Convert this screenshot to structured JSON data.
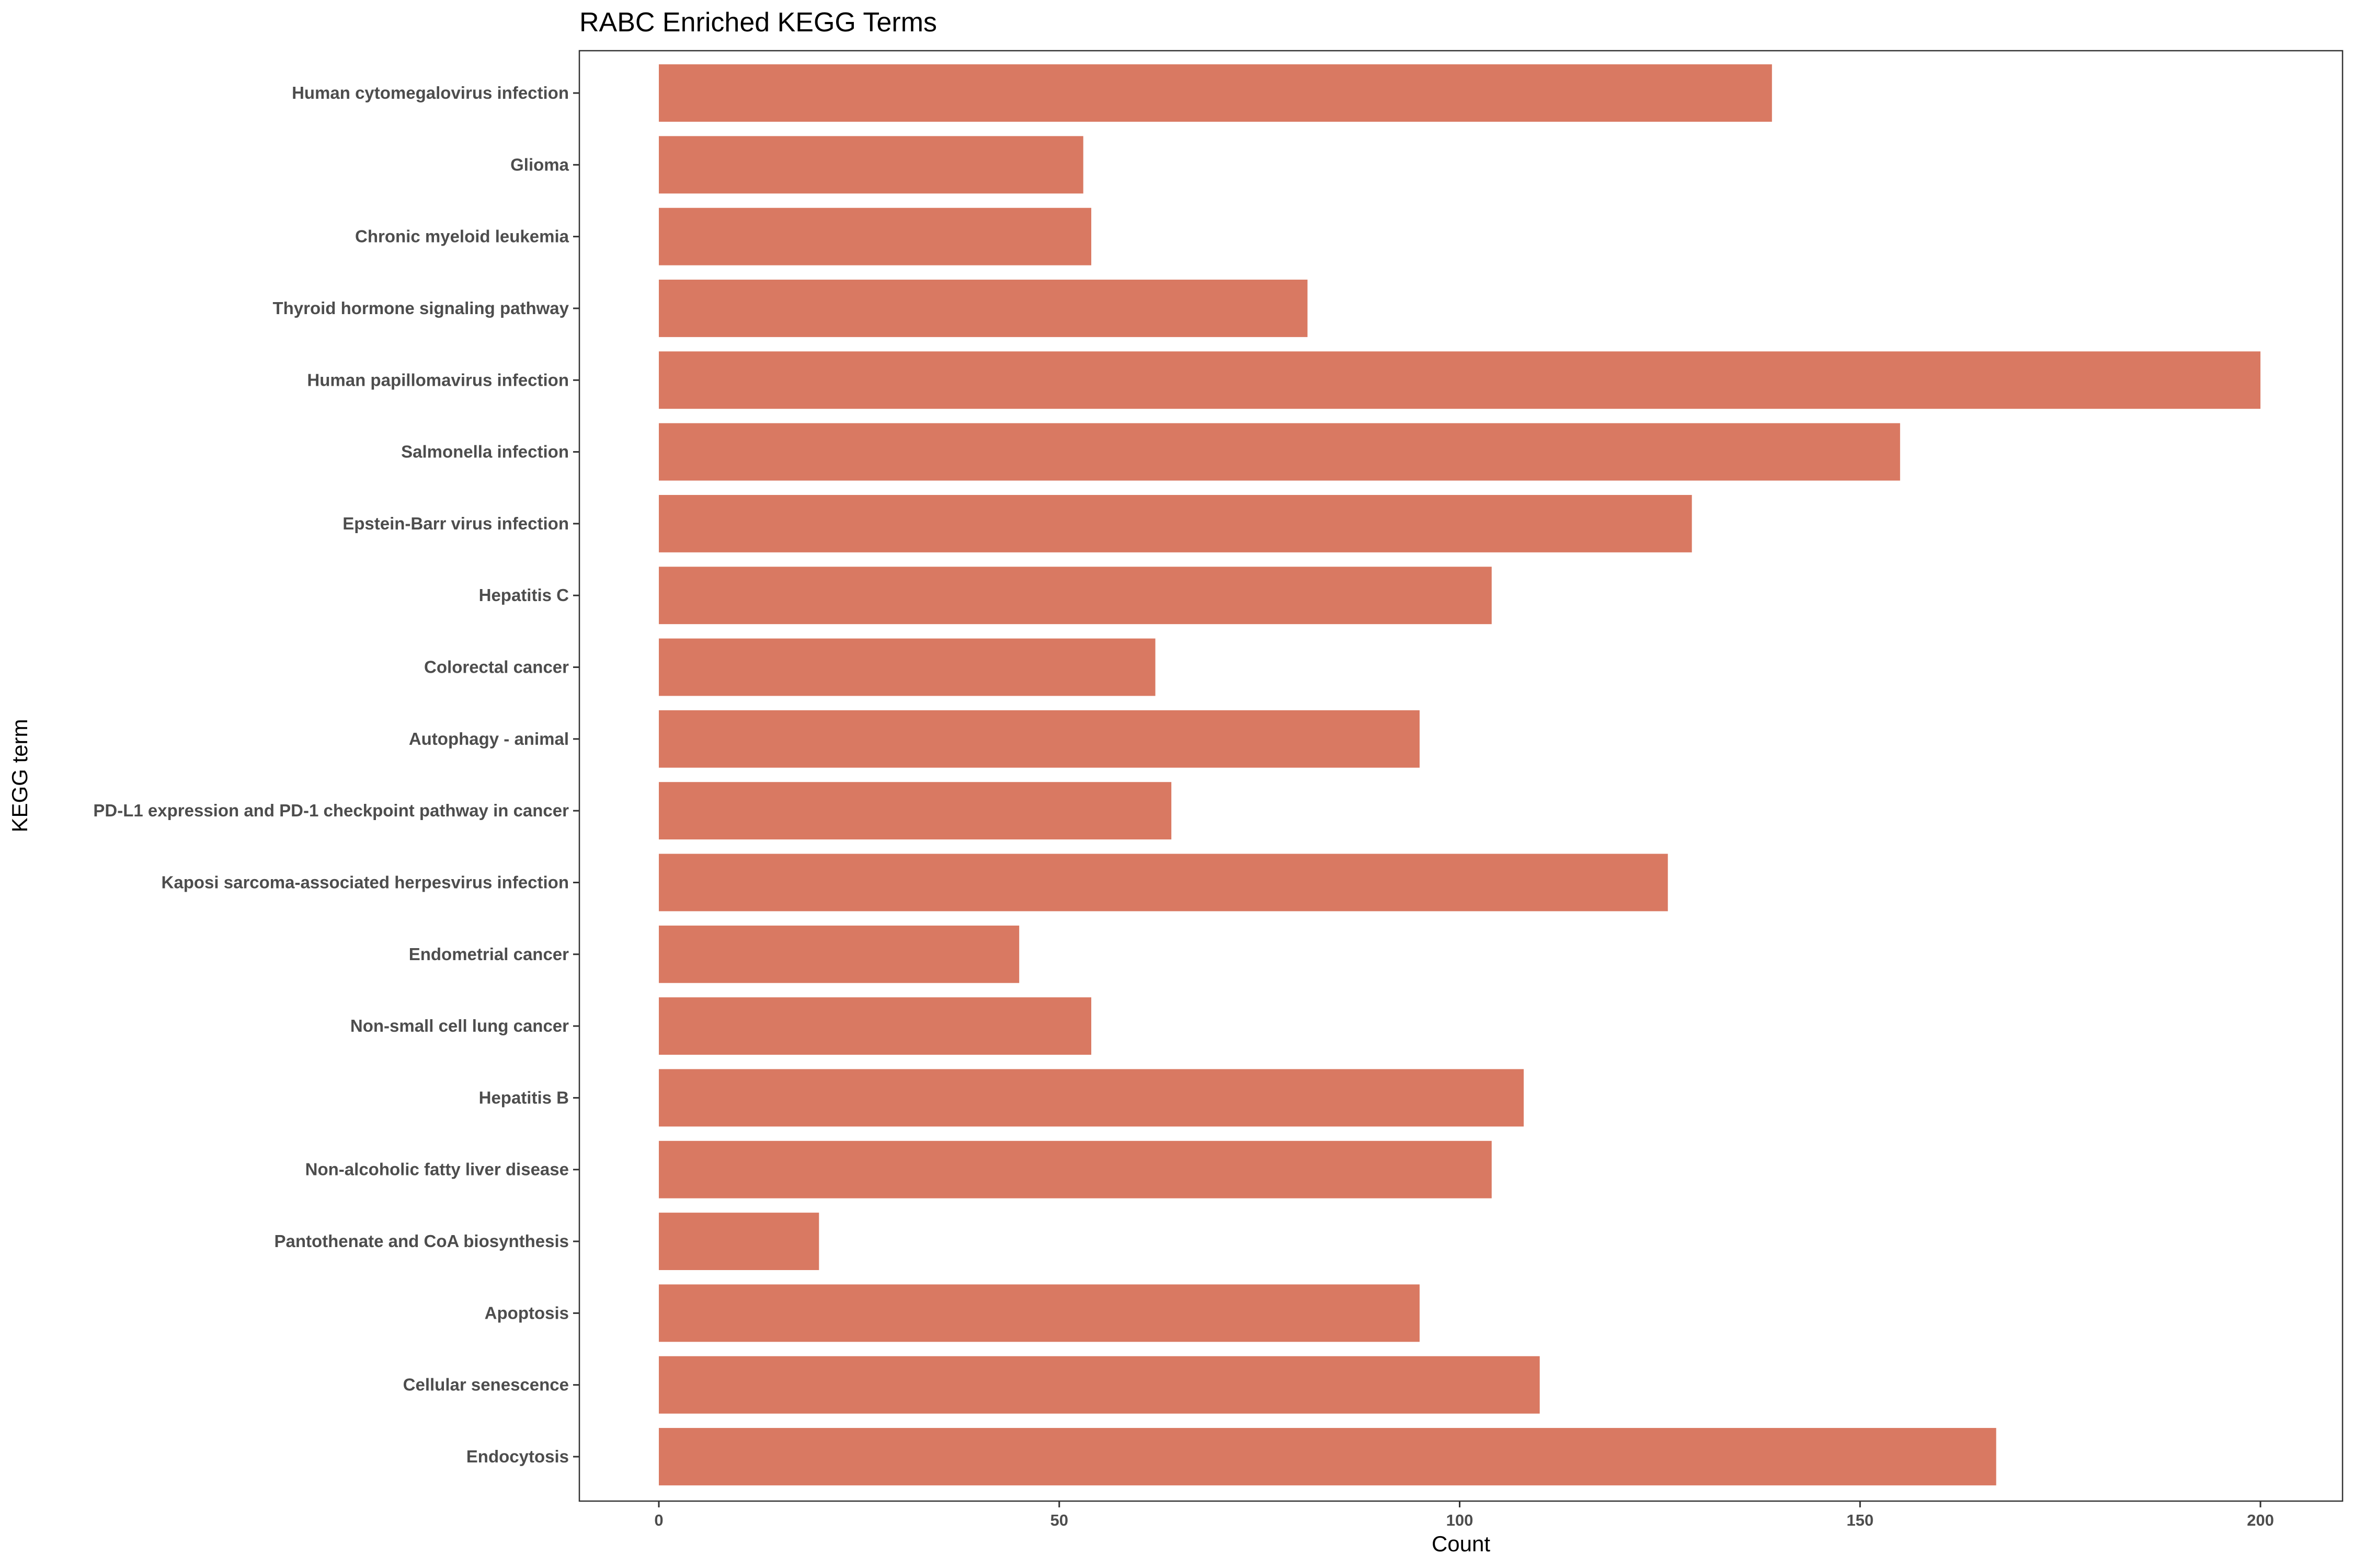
{
  "chart_data": {
    "type": "bar",
    "orientation": "horizontal",
    "title": "RABC Enriched KEGG Terms",
    "xlabel": "Count",
    "ylabel": "KEGG term",
    "xlim": [
      -20,
      210
    ],
    "xticks": [
      0,
      50,
      100,
      150,
      200
    ],
    "grid": false,
    "bar_color": "#d97962",
    "categories": [
      "Human cytomegalovirus infection",
      "Glioma",
      "Chronic myeloid leukemia",
      "Thyroid hormone signaling pathway",
      "Human papillomavirus infection",
      "Salmonella infection",
      "Epstein-Barr virus infection",
      "Hepatitis C",
      "Colorectal cancer",
      "Autophagy - animal",
      "PD-L1 expression and PD-1 checkpoint pathway in cancer",
      "Kaposi sarcoma-associated herpesvirus infection",
      "Endometrial cancer",
      "Non-small cell lung cancer",
      "Hepatitis B",
      "Non-alcoholic fatty liver disease",
      "Pantothenate and CoA biosynthesis",
      "Apoptosis",
      "Cellular senescence",
      "Endocytosis"
    ],
    "values": [
      139,
      53,
      54,
      81,
      200,
      155,
      129,
      104,
      62,
      95,
      64,
      126,
      45,
      54,
      108,
      104,
      20,
      95,
      110,
      167
    ]
  }
}
